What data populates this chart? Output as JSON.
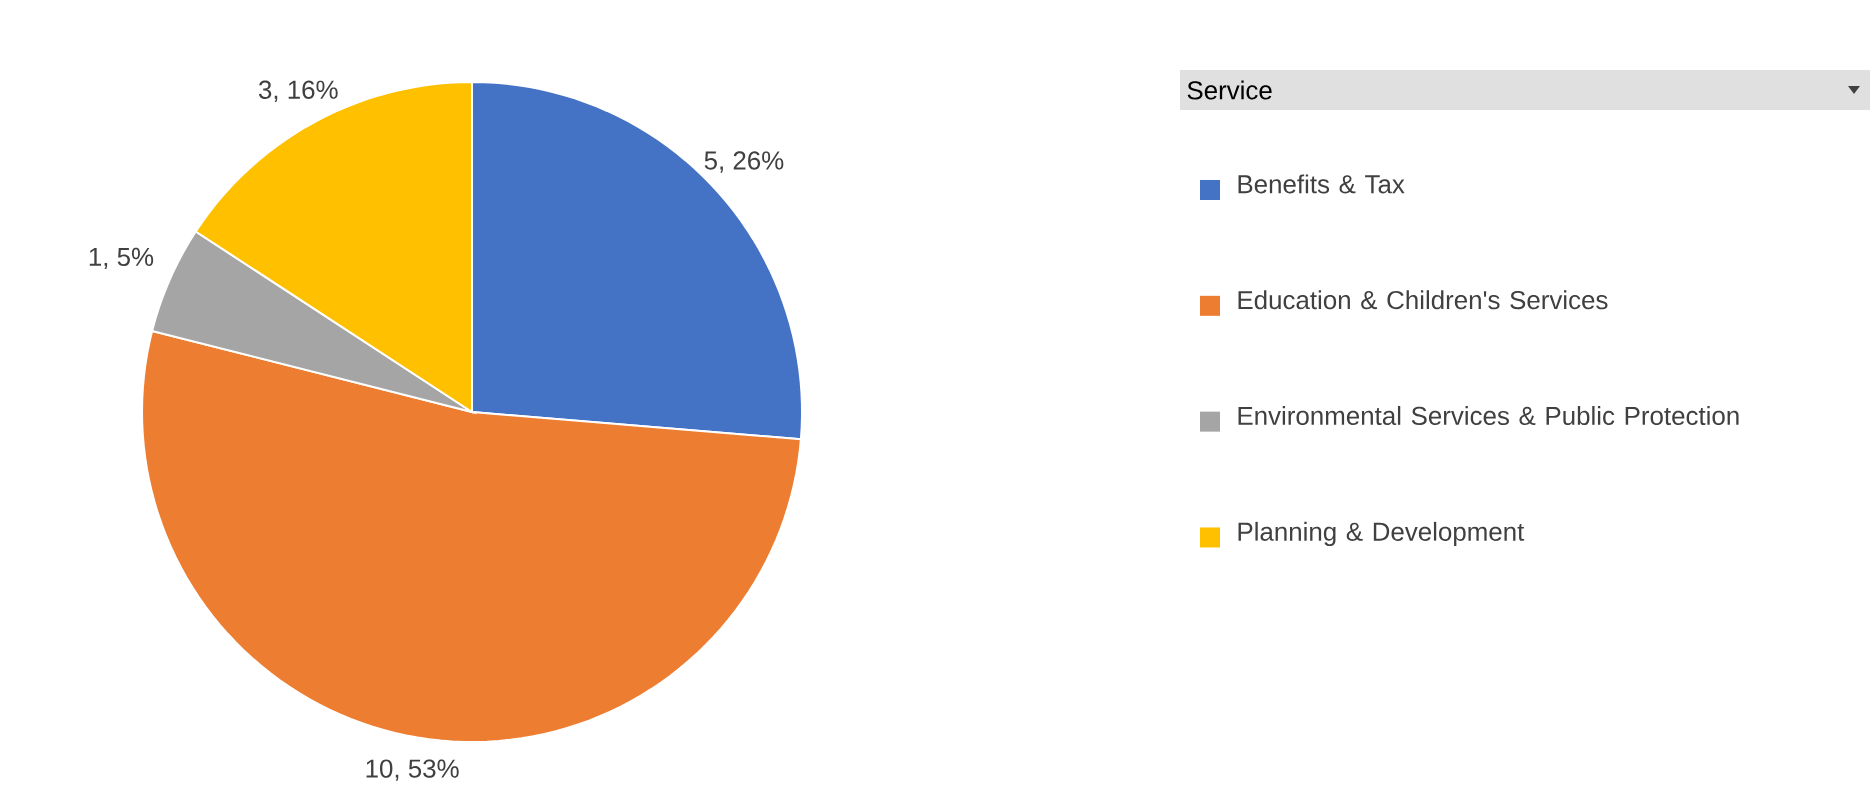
{
  "chart_data": {
    "type": "pie",
    "legend_title": "Service",
    "legend": "right",
    "categories": [
      "Benefits & Tax",
      "Education & Children's Services",
      "Environmental Services & Public Protection",
      "Planning & Development"
    ],
    "values": [
      5,
      10,
      1,
      3
    ],
    "colors": [
      "#4472c4",
      "#ed7d31",
      "#a5a5a5",
      "#ffc000"
    ],
    "value_labels": [
      "5, 26%",
      "10, 53%",
      "1, 5%",
      "3, 16%"
    ]
  }
}
